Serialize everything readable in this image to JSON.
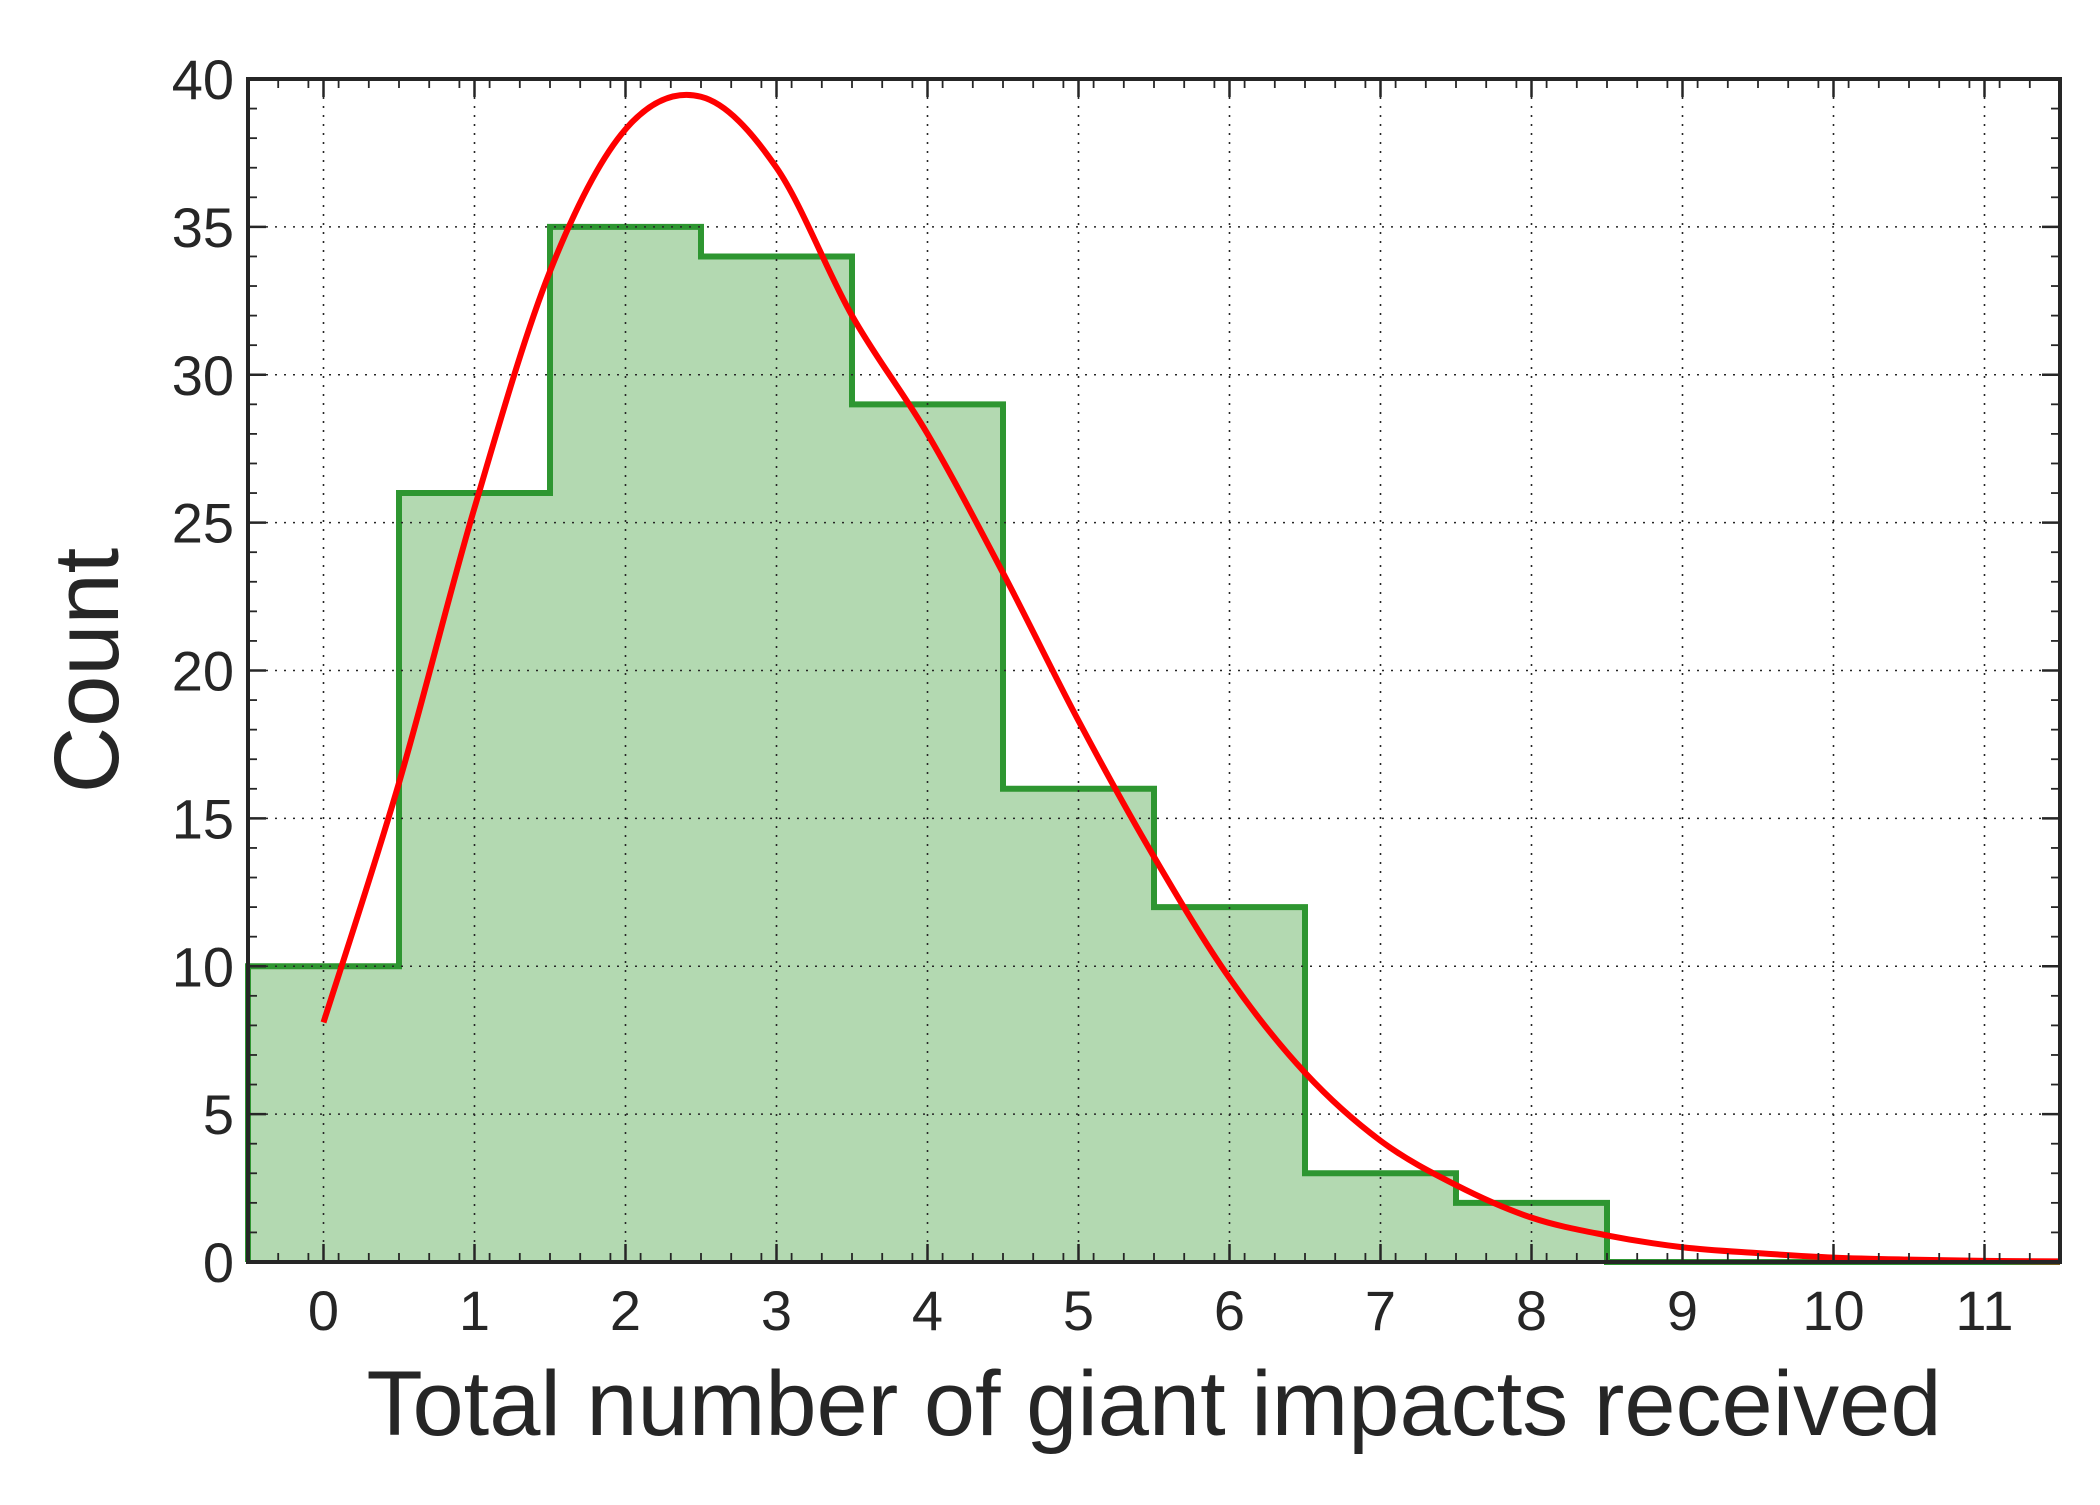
{
  "chart_data": {
    "type": "bar",
    "style": "step-histogram",
    "title": "",
    "xlabel": "Total number of giant impacts received",
    "ylabel": "Count",
    "xlim": [
      -0.5,
      11.5
    ],
    "ylim": [
      0,
      40
    ],
    "xticks": [
      0,
      1,
      2,
      3,
      4,
      5,
      6,
      7,
      8,
      9,
      10,
      11
    ],
    "yticks": [
      0,
      5,
      10,
      15,
      20,
      25,
      30,
      35,
      40
    ],
    "grid": true,
    "grid_style": "dotted",
    "categories": [
      0,
      1,
      2,
      3,
      4,
      5,
      6,
      7,
      8,
      9,
      10,
      11
    ],
    "series": [
      {
        "kind": "histogram",
        "values": [
          10,
          26,
          35,
          34,
          29,
          16,
          12,
          3,
          2,
          0,
          0,
          0
        ],
        "fill_color": "#b3d9b1",
        "edge_color": "#2e9631"
      },
      {
        "kind": "fit-curve",
        "color": "#ff0000",
        "x": [
          0,
          0.5,
          1,
          1.5,
          2,
          2.5,
          3,
          3.5,
          4,
          4.5,
          5,
          5.5,
          6,
          6.5,
          7,
          7.5,
          8,
          8.5,
          9,
          9.5,
          10,
          10.5,
          11,
          11.5
        ],
        "y": [
          8.1,
          16.2,
          25.5,
          33.5,
          38.3,
          39.4,
          37.0,
          32.0,
          28.0,
          23.3,
          18.3,
          13.7,
          9.6,
          6.4,
          4.1,
          2.6,
          1.5,
          0.9,
          0.5,
          0.3,
          0.15,
          0.08,
          0.04,
          0.02
        ]
      }
    ]
  },
  "colors": {
    "axis": "#262626",
    "grid": "#262626",
    "hist_fill": "#b3d9b1",
    "hist_edge": "#2e9631",
    "curve": "#ff0000"
  }
}
